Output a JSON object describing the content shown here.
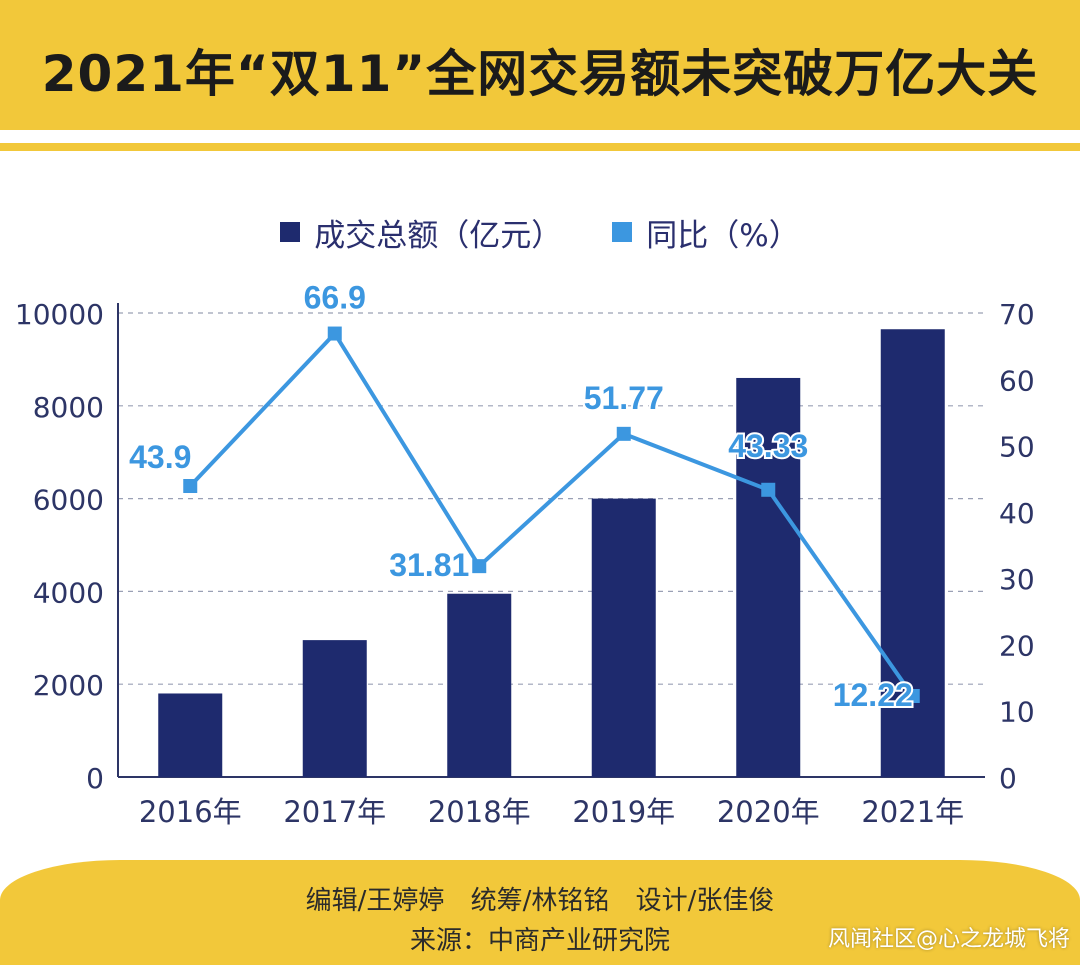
{
  "header": {
    "title": "2021年“双11”全网交易额未突破万亿大关"
  },
  "legend": {
    "items": [
      {
        "label": "成交总额（亿元）",
        "color": "#1e2a6e"
      },
      {
        "label": "同比（%）",
        "color": "#3c97e0"
      }
    ]
  },
  "chart_data": {
    "type": "bar",
    "categories": [
      "2016年",
      "2017年",
      "2018年",
      "2019年",
      "2020年",
      "2021年"
    ],
    "series": [
      {
        "name": "成交总额（亿元）",
        "kind": "bar",
        "axis": "left",
        "color": "#1e2a6e",
        "values": [
          1800,
          2950,
          3950,
          6000,
          8600,
          9650
        ]
      },
      {
        "name": "同比（%）",
        "kind": "line",
        "axis": "right",
        "color": "#3c97e0",
        "values": [
          43.9,
          66.9,
          31.81,
          51.77,
          43.33,
          12.22
        ],
        "labels": [
          "43.9",
          "66.9",
          "31.81",
          "51.77",
          "43.33",
          "12.22"
        ]
      }
    ],
    "y_left": {
      "lim": [
        0,
        10000
      ],
      "ticks": [
        "0",
        "2000",
        "4000",
        "6000",
        "8000",
        "10000"
      ]
    },
    "y_right": {
      "lim": [
        0,
        70
      ],
      "ticks": [
        "0",
        "10",
        "20",
        "30",
        "40",
        "50",
        "60",
        "70"
      ]
    },
    "grid": "dashed horizontal",
    "legend_position": "top-center"
  },
  "footer": {
    "credits": "编辑/王婷婷 统筹/林铭铭 设计/张佳俊",
    "source": "来源：中商产业研究院"
  },
  "watermark": "风闻社区@心之龙城飞将"
}
